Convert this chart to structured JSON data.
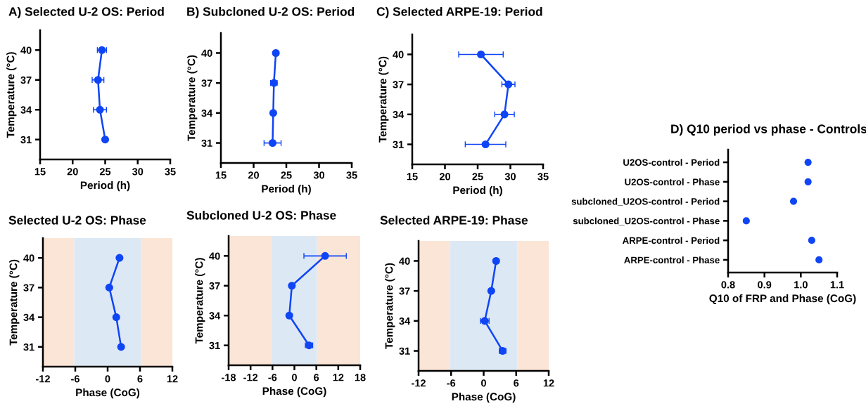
{
  "chart_data": [
    {
      "type": "line",
      "title": "A) Selected U-2 OS: Period",
      "xlabel": "Period (h)",
      "ylabel": "Temperature (°C)",
      "xlim": [
        15,
        35
      ],
      "xticks": [
        15,
        20,
        25,
        30,
        35
      ],
      "ylim": [
        29,
        42
      ],
      "yticks": [
        31,
        34,
        37,
        40
      ],
      "grid": false,
      "marker": "circle",
      "line_style": "solid",
      "series": [
        {
          "color": "#0f45f5",
          "x": [
            24.5,
            23.9,
            24.2,
            25.0
          ],
          "values": [
            40,
            37,
            34,
            31
          ],
          "xerrors": [
            0.7,
            0.9,
            1.0,
            null
          ]
        }
      ]
    },
    {
      "type": "line",
      "title": "B) Subcloned U-2 OS: Period",
      "xlabel": "Period (h)",
      "ylabel": "Temperature (°C)",
      "xlim": [
        15,
        35
      ],
      "xticks": [
        15,
        20,
        25,
        30,
        35
      ],
      "ylim": [
        29,
        42
      ],
      "yticks": [
        31,
        34,
        37,
        40
      ],
      "grid": false,
      "marker": "circle",
      "line_style": "solid",
      "series": [
        {
          "color": "#0f45f5",
          "x": [
            23.4,
            23.1,
            23.0,
            22.9
          ],
          "values": [
            40,
            37,
            34,
            31
          ],
          "xerrors": [
            0.3,
            0.5,
            0.2,
            1.3
          ]
        }
      ]
    },
    {
      "type": "line",
      "title": "C) Selected ARPE-19: Period",
      "xlabel": "Period (h)",
      "ylabel": "Temperature (°C)",
      "xlim": [
        15,
        35
      ],
      "xticks": [
        15,
        20,
        25,
        30,
        35
      ],
      "ylim": [
        29,
        42
      ],
      "yticks": [
        31,
        34,
        37,
        40
      ],
      "grid": false,
      "marker": "circle",
      "line_style": "solid",
      "series": [
        {
          "color": "#0f45f5",
          "x": [
            25.5,
            29.7,
            29.1,
            26.2
          ],
          "values": [
            40,
            37,
            34,
            31
          ],
          "xerrors": [
            3.4,
            1.0,
            1.5,
            3.1
          ]
        }
      ]
    },
    {
      "type": "scatter",
      "orientation": "horizontal",
      "title": "D) Q10 period vs phase - Controls",
      "xlabel": "Q10 of FRP and Phase (CoG)",
      "categories": [
        "U2OS-control - Period",
        "U2OS-control - Phase",
        "subcloned_U2OS-control - Period",
        "subcloned_U2OS-control - Phase",
        "ARPE-control - Period",
        "ARPE-control - Phase"
      ],
      "xlim": [
        0.8,
        1.1
      ],
      "xticks": [
        {
          "value": 0.8,
          "label": "0.8"
        },
        {
          "value": 0.9,
          "label": "0.9"
        },
        {
          "value": 1.0,
          "label": "1.0"
        },
        {
          "value": 1.1,
          "label": "1.1"
        }
      ],
      "grid": false,
      "marker": "circle",
      "series": [
        {
          "color": "#0f45f5",
          "values": [
            1.02,
            1.02,
            0.98,
            0.85,
            1.03,
            1.05
          ]
        }
      ]
    },
    {
      "type": "line",
      "title": "Selected U-2 OS: Phase",
      "xlabel": "Phase (CoG)",
      "ylabel": "Temperature (°C)",
      "xlim": [
        -12,
        12
      ],
      "xticks": [
        -12,
        -6,
        0,
        6,
        12
      ],
      "ylim": [
        29,
        42
      ],
      "yticks": [
        31,
        34,
        37,
        40
      ],
      "grid": false,
      "marker": "circle",
      "line_style": "solid",
      "bands": [
        {
          "axis": "x",
          "from": -12,
          "to": -6.2,
          "color": "#fbe5d6"
        },
        {
          "axis": "x",
          "from": -6.2,
          "to": 6.2,
          "color": "#dde8f5"
        },
        {
          "axis": "x",
          "from": 6.2,
          "to": 12,
          "color": "#fbe5d6"
        }
      ],
      "series": [
        {
          "color": "#0f45f5",
          "x": [
            2.2,
            0.3,
            1.6,
            2.5
          ],
          "values": [
            40,
            37,
            34,
            31
          ]
        }
      ]
    },
    {
      "type": "line",
      "title": "Subcloned U-2 OS: Phase",
      "xlabel": "Phase (CoG)",
      "ylabel": "Temperature (°C)",
      "xlim": [
        -18,
        18
      ],
      "xticks": [
        -18,
        -12,
        -6,
        0,
        6,
        12,
        18
      ],
      "ylim": [
        29,
        42
      ],
      "yticks": [
        31,
        34,
        37,
        40
      ],
      "grid": false,
      "marker": "circle",
      "line_style": "solid",
      "bands": [
        {
          "axis": "x",
          "from": -18,
          "to": -6.2,
          "color": "#fbe5d6"
        },
        {
          "axis": "x",
          "from": -6.2,
          "to": 6.2,
          "color": "#dde8f5"
        },
        {
          "axis": "x",
          "from": 6.2,
          "to": 18,
          "color": "#fbe5d6"
        }
      ],
      "series": [
        {
          "color": "#0f45f5",
          "x": [
            8.4,
            -0.7,
            -1.4,
            4.0
          ],
          "values": [
            40,
            37,
            34,
            31
          ],
          "xerrors": [
            5.8,
            null,
            null,
            1.0
          ]
        }
      ]
    },
    {
      "type": "line",
      "title": "Selected ARPE-19: Phase",
      "xlabel": "Phase (CoG)",
      "ylabel": "Temperature (°C)",
      "xlim": [
        -12,
        12
      ],
      "xticks": [
        -12,
        -6,
        0,
        6,
        12
      ],
      "ylim": [
        29,
        42
      ],
      "yticks": [
        31,
        34,
        37,
        40
      ],
      "grid": false,
      "marker": "circle",
      "line_style": "solid",
      "bands": [
        {
          "axis": "x",
          "from": -12,
          "to": -6.2,
          "color": "#fbe5d6"
        },
        {
          "axis": "x",
          "from": -6.2,
          "to": 6.2,
          "color": "#dde8f5"
        },
        {
          "axis": "x",
          "from": 6.2,
          "to": 12,
          "color": "#fbe5d6"
        }
      ],
      "series": [
        {
          "color": "#0f45f5",
          "x": [
            2.3,
            1.4,
            0.2,
            3.5
          ],
          "values": [
            40,
            37,
            34,
            31
          ],
          "xerrors": [
            null,
            null,
            0.8,
            0.6
          ]
        }
      ]
    }
  ]
}
